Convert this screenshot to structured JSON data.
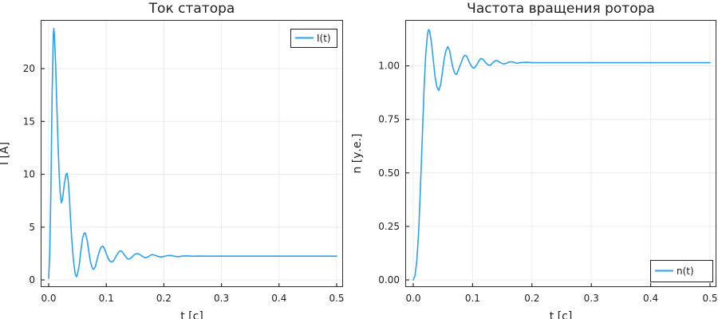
{
  "figure": {
    "background": "#ffffff",
    "line_color": "#2aa1f3",
    "grid_color": "#ececec",
    "frame_color": "#2f2f2f",
    "text_color": "#1f1f1f",
    "legend_background": "#ffffff",
    "legend_border": "#1f1f1f"
  },
  "chart_data": [
    {
      "type": "line",
      "title": "Ток статора",
      "xlabel": "t [c]",
      "ylabel": "I [А]",
      "xlim": [
        0,
        0.5
      ],
      "ylim": [
        0,
        24
      ],
      "grid": true,
      "xticks": {
        "values": [
          0,
          0.1,
          0.2,
          0.3,
          0.4,
          0.5
        ],
        "labels": [
          "0.0",
          "0.1",
          "0.2",
          "0.3",
          "0.4",
          "0.5"
        ]
      },
      "yticks": {
        "values": [
          0,
          5,
          10,
          15,
          20
        ],
        "labels": [
          "0",
          "5",
          "10",
          "15",
          "20"
        ]
      },
      "legend": {
        "label": "I(t)",
        "position": "top-right"
      },
      "series": [
        {
          "name": "I(t)",
          "color": "#2aa1f3",
          "points": [
            [
              0,
              0.15
            ],
            [
              0.002,
              2.5
            ],
            [
              0.004,
              9
            ],
            [
              0.006,
              17.5
            ],
            [
              0.008,
              23.2
            ],
            [
              0.009,
              23.8
            ],
            [
              0.01,
              23.2
            ],
            [
              0.012,
              20.5
            ],
            [
              0.014,
              16.8
            ],
            [
              0.016,
              13.2
            ],
            [
              0.018,
              10.3
            ],
            [
              0.02,
              8.3
            ],
            [
              0.022,
              7.3
            ],
            [
              0.024,
              7.6
            ],
            [
              0.027,
              9.0
            ],
            [
              0.03,
              10.0
            ],
            [
              0.032,
              10.1
            ],
            [
              0.034,
              9.4
            ],
            [
              0.036,
              7.8
            ],
            [
              0.038,
              5.8
            ],
            [
              0.04,
              3.9
            ],
            [
              0.043,
              1.9
            ],
            [
              0.046,
              0.6
            ],
            [
              0.048,
              0.3
            ],
            [
              0.05,
              0.5
            ],
            [
              0.053,
              1.4
            ],
            [
              0.056,
              2.8
            ],
            [
              0.059,
              4.0
            ],
            [
              0.062,
              4.45
            ],
            [
              0.064,
              4.4
            ],
            [
              0.067,
              3.7
            ],
            [
              0.07,
              2.6
            ],
            [
              0.073,
              1.6
            ],
            [
              0.076,
              1.1
            ],
            [
              0.078,
              1.0
            ],
            [
              0.081,
              1.25
            ],
            [
              0.084,
              1.9
            ],
            [
              0.088,
              2.7
            ],
            [
              0.091,
              3.1
            ],
            [
              0.094,
              3.2
            ],
            [
              0.097,
              2.95
            ],
            [
              0.1,
              2.5
            ],
            [
              0.104,
              1.95
            ],
            [
              0.107,
              1.75
            ],
            [
              0.11,
              1.7
            ],
            [
              0.113,
              1.85
            ],
            [
              0.117,
              2.25
            ],
            [
              0.121,
              2.6
            ],
            [
              0.124,
              2.75
            ],
            [
              0.127,
              2.7
            ],
            [
              0.131,
              2.4
            ],
            [
              0.135,
              2.1
            ],
            [
              0.138,
              1.97
            ],
            [
              0.141,
              2.0
            ],
            [
              0.145,
              2.18
            ],
            [
              0.149,
              2.4
            ],
            [
              0.153,
              2.5
            ],
            [
              0.157,
              2.45
            ],
            [
              0.161,
              2.3
            ],
            [
              0.165,
              2.15
            ],
            [
              0.169,
              2.1
            ],
            [
              0.173,
              2.2
            ],
            [
              0.177,
              2.35
            ],
            [
              0.181,
              2.4
            ],
            [
              0.186,
              2.3
            ],
            [
              0.19,
              2.22
            ],
            [
              0.195,
              2.17
            ],
            [
              0.2,
              2.22
            ],
            [
              0.206,
              2.3
            ],
            [
              0.212,
              2.32
            ],
            [
              0.218,
              2.25
            ],
            [
              0.225,
              2.2
            ],
            [
              0.232,
              2.26
            ],
            [
              0.24,
              2.28
            ],
            [
              0.25,
              2.24
            ],
            [
              0.26,
              2.26
            ],
            [
              0.28,
              2.25
            ],
            [
              0.3,
              2.25
            ],
            [
              0.35,
              2.25
            ],
            [
              0.4,
              2.25
            ],
            [
              0.45,
              2.25
            ],
            [
              0.5,
              2.25
            ]
          ]
        }
      ]
    },
    {
      "type": "line",
      "title": "Частота вращения ротора",
      "xlabel": "t [c]",
      "ylabel": "n [у.е.]",
      "xlim": [
        0,
        0.5
      ],
      "ylim": [
        0,
        1.185
      ],
      "grid": true,
      "xticks": {
        "values": [
          0,
          0.1,
          0.2,
          0.3,
          0.4,
          0.5
        ],
        "labels": [
          "0.0",
          "0.1",
          "0.2",
          "0.3",
          "0.4",
          "0.5"
        ]
      },
      "yticks": {
        "values": [
          0,
          0.25,
          0.5,
          0.75,
          1.0
        ],
        "labels": [
          "0.00",
          "0.25",
          "0.50",
          "0.75",
          "1.00"
        ]
      },
      "legend": {
        "label": "n(t)",
        "position": "bottom-right"
      },
      "series": [
        {
          "name": "n(t)",
          "color": "#2aa1f3",
          "points": [
            [
              0,
              0
            ],
            [
              0.003,
              0.02
            ],
            [
              0.006,
              0.09
            ],
            [
              0.009,
              0.22
            ],
            [
              0.012,
              0.42
            ],
            [
              0.015,
              0.65
            ],
            [
              0.018,
              0.88
            ],
            [
              0.021,
              1.05
            ],
            [
              0.024,
              1.15
            ],
            [
              0.026,
              1.17
            ],
            [
              0.028,
              1.16
            ],
            [
              0.031,
              1.1
            ],
            [
              0.034,
              1.02
            ],
            [
              0.037,
              0.945
            ],
            [
              0.04,
              0.9
            ],
            [
              0.043,
              0.885
            ],
            [
              0.046,
              0.91
            ],
            [
              0.049,
              0.97
            ],
            [
              0.052,
              1.03
            ],
            [
              0.055,
              1.07
            ],
            [
              0.058,
              1.09
            ],
            [
              0.061,
              1.075
            ],
            [
              0.064,
              1.03
            ],
            [
              0.067,
              0.99
            ],
            [
              0.07,
              0.965
            ],
            [
              0.073,
              0.96
            ],
            [
              0.076,
              0.98
            ],
            [
              0.08,
              1.01
            ],
            [
              0.084,
              1.04
            ],
            [
              0.087,
              1.05
            ],
            [
              0.09,
              1.045
            ],
            [
              0.094,
              1.02
            ],
            [
              0.097,
              1.003
            ],
            [
              0.1,
              0.992
            ],
            [
              0.103,
              0.99
            ],
            [
              0.107,
              1.005
            ],
            [
              0.111,
              1.025
            ],
            [
              0.114,
              1.035
            ],
            [
              0.118,
              1.03
            ],
            [
              0.122,
              1.015
            ],
            [
              0.126,
              1.005
            ],
            [
              0.13,
              1.003
            ],
            [
              0.134,
              1.015
            ],
            [
              0.138,
              1.024
            ],
            [
              0.142,
              1.024
            ],
            [
              0.147,
              1.015
            ],
            [
              0.152,
              1.009
            ],
            [
              0.157,
              1.012
            ],
            [
              0.162,
              1.019
            ],
            [
              0.168,
              1.018
            ],
            [
              0.174,
              1.012
            ],
            [
              0.18,
              1.015
            ],
            [
              0.19,
              1.017
            ],
            [
              0.2,
              1.015
            ],
            [
              0.22,
              1.015
            ],
            [
              0.25,
              1.015
            ],
            [
              0.3,
              1.015
            ],
            [
              0.35,
              1.015
            ],
            [
              0.4,
              1.015
            ],
            [
              0.45,
              1.015
            ],
            [
              0.5,
              1.015
            ]
          ]
        }
      ]
    }
  ]
}
